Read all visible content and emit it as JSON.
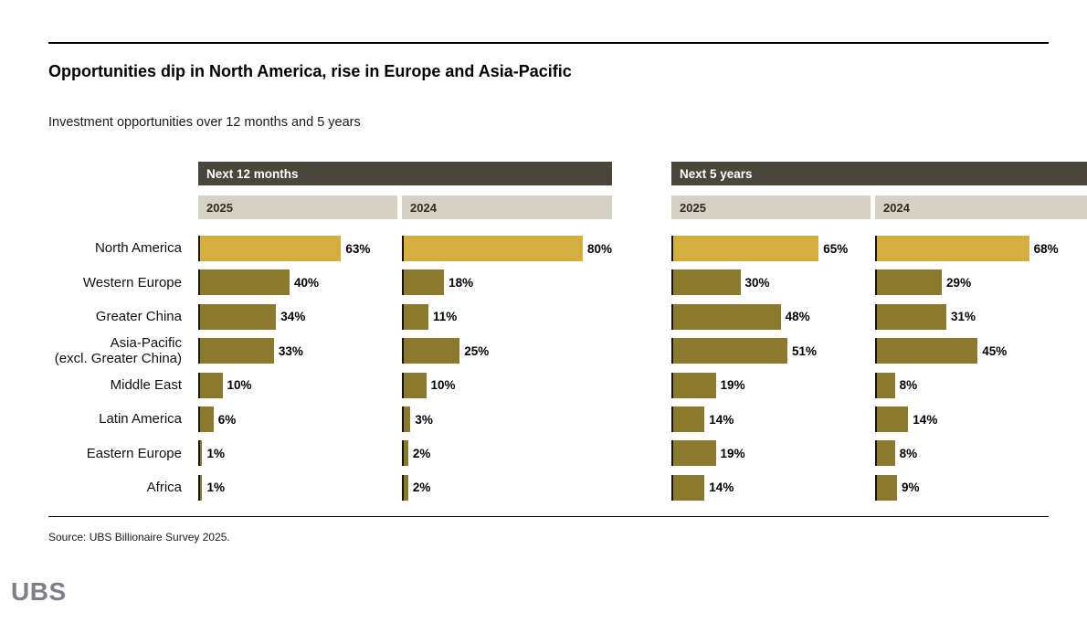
{
  "title": "Opportunities dip in North America, rise in Europe and Asia-Pacific",
  "subtitle": "Investment opportunities over 12 months and 5 years",
  "source": "Source: UBS Billionaire Survey 2025.",
  "logo": "UBS",
  "colors": {
    "highlight_bar": "#d4ae3e",
    "bar": "#8b7a2b",
    "header_bg": "#4a4639",
    "subheader_bg": "#d5d2c3",
    "rule": "#000000",
    "logo": "#7e7f89"
  },
  "chart_data": {
    "type": "bar",
    "orientation": "horizontal",
    "unit": "%",
    "xlim": [
      0,
      100
    ],
    "grid": false,
    "legend": "none",
    "groups": [
      {
        "label": "Next 12 months",
        "columns": [
          "2025",
          "2024"
        ]
      },
      {
        "label": "Next 5 years",
        "columns": [
          "2025",
          "2024"
        ]
      }
    ],
    "categories": [
      "North America",
      "Western Europe",
      "Greater China",
      "Asia-Pacific\n(excl. Greater China)",
      "Middle East",
      "Latin America",
      "Eastern Europe",
      "Africa"
    ],
    "series": [
      {
        "name": "Next 12 months – 2025",
        "values": [
          63,
          40,
          34,
          33,
          10,
          6,
          1,
          1
        ]
      },
      {
        "name": "Next 12 months – 2024",
        "values": [
          80,
          18,
          11,
          25,
          10,
          3,
          2,
          2
        ]
      },
      {
        "name": "Next 5 years – 2025",
        "values": [
          65,
          30,
          48,
          51,
          19,
          14,
          19,
          14
        ]
      },
      {
        "name": "Next 5 years – 2024",
        "values": [
          68,
          29,
          31,
          45,
          8,
          14,
          8,
          9
        ]
      }
    ],
    "highlighted_category": "North America"
  }
}
